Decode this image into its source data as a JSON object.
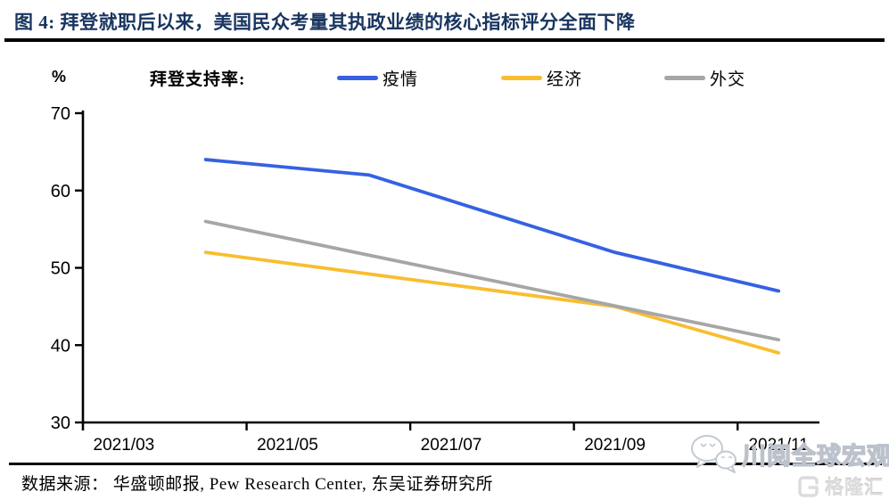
{
  "header": {
    "title": "图 4:  拜登就职后以来，美国民众考量其执政业绩的核心指标评分全面下降"
  },
  "legend": {
    "unit": "%",
    "prefix": "拜登支持率:",
    "items": [
      {
        "label": "疫情",
        "color": "#3561e2"
      },
      {
        "label": "经济",
        "color": "#f8be30"
      },
      {
        "label": "外交",
        "color": "#a6a6a6"
      }
    ]
  },
  "chart_data": {
    "type": "line",
    "title": "拜登就职后以来，美国民众考量其执政业绩的核心指标评分全面下降",
    "ylabel": "%",
    "xlabel": "",
    "ylim": [
      30,
      70
    ],
    "yticks": [
      30,
      40,
      50,
      60,
      70
    ],
    "xticklabels": [
      "2021/03",
      "2021/05",
      "2021/07",
      "2021/09",
      "2021/11"
    ],
    "x_axis_span_months": [
      2.5,
      11.5
    ],
    "grid": false,
    "legend_position": "top",
    "series": [
      {
        "name": "疫情",
        "color": "#3561e2",
        "points": [
          [
            "2021/04",
            64
          ],
          [
            "2021/06",
            62
          ],
          [
            "2021/09",
            52
          ],
          [
            "2021/11",
            47
          ]
        ]
      },
      {
        "name": "经济",
        "color": "#f8be30",
        "points": [
          [
            "2021/04",
            52
          ],
          [
            "2021/09",
            45
          ],
          [
            "2021/11",
            39
          ]
        ]
      },
      {
        "name": "外交",
        "color": "#a6a6a6",
        "points": [
          [
            "2021/04",
            56
          ],
          [
            "2021/11",
            40.7
          ]
        ]
      }
    ]
  },
  "footer": {
    "source": "数据来源：  华盛顿邮报, Pew Research Center, 东吴证券研究所"
  },
  "watermark": {
    "wechat_text": "川阅全球宏观",
    "gelonghui_text": "格隆汇"
  }
}
